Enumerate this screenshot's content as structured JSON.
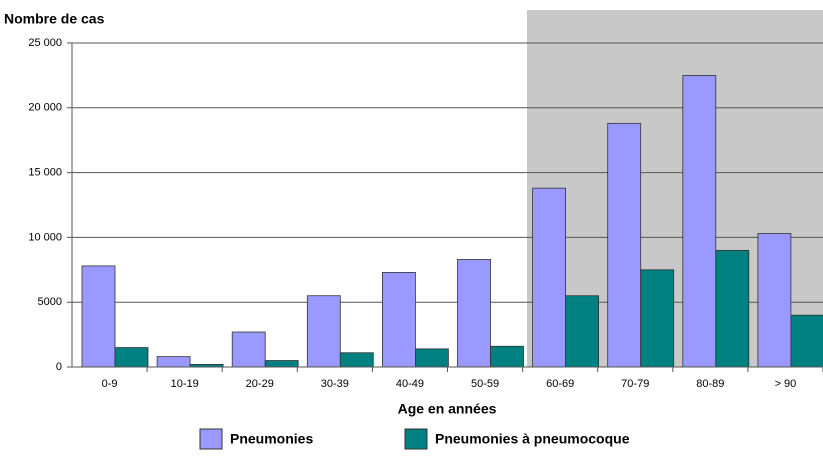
{
  "chart_data": {
    "type": "bar",
    "y_title": "Nombre de cas",
    "x_title": "Age en années",
    "categories": [
      "0-9",
      "10-19",
      "20-29",
      "30-39",
      "40-49",
      "50-59",
      "60-69",
      "70-79",
      "80-89",
      "> 90"
    ],
    "series": [
      {
        "name": "Pneumonies",
        "color": "#9999ff",
        "values": [
          7800,
          800,
          2700,
          5500,
          7300,
          8300,
          13800,
          18800,
          22500,
          10300
        ]
      },
      {
        "name": "Pneumonies à pneumocoque",
        "color": "#008080",
        "values": [
          1500,
          200,
          500,
          1100,
          1400,
          1600,
          5500,
          7500,
          9000,
          4000
        ]
      }
    ],
    "ylim": [
      0,
      25000
    ],
    "yticks": [
      {
        "value": 0,
        "label": "0"
      },
      {
        "value": 5000,
        "label": "5000"
      },
      {
        "value": 10000,
        "label": "10 000"
      },
      {
        "value": 15000,
        "label": "15 000"
      },
      {
        "value": 20000,
        "label": "20 000"
      },
      {
        "value": 25000,
        "label": "25 000"
      }
    ],
    "grid": true
  }
}
